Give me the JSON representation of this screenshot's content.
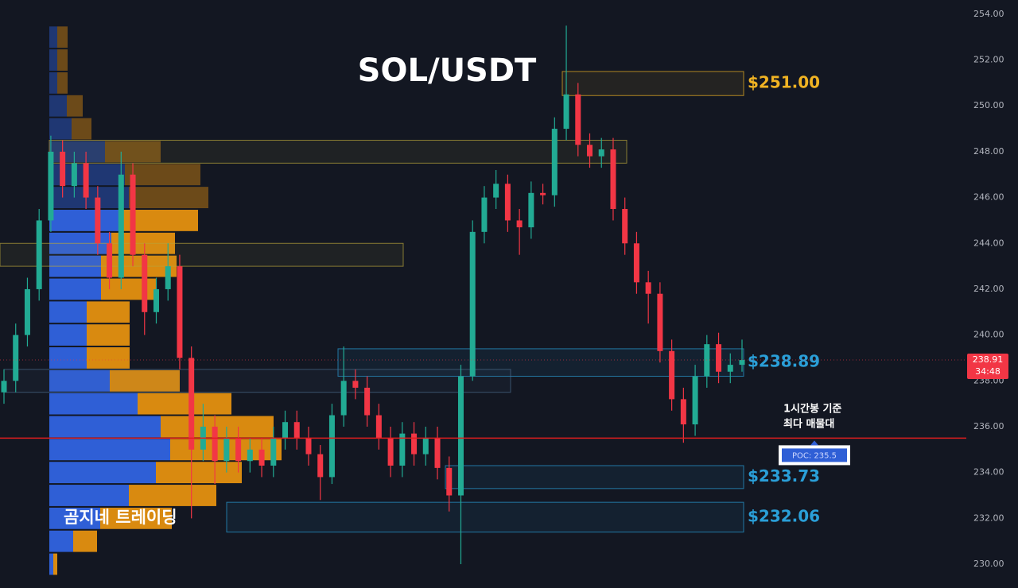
{
  "chart_data": {
    "type": "candlestick",
    "title": "SOL/USDT",
    "watermark": "곰지네 트레이딩",
    "annotation": [
      "1시간봉 기준",
      "최다 매물대"
    ],
    "ylim": [
      228.96,
      254.62
    ],
    "yticks": [
      {
        "value": 230,
        "label": "230.00"
      },
      {
        "value": 232,
        "label": "232.00"
      },
      {
        "value": 234,
        "label": "234.00"
      },
      {
        "value": 236,
        "label": "236.00"
      },
      {
        "value": 238,
        "label": "238.00"
      },
      {
        "value": 240,
        "label": "240.00"
      },
      {
        "value": 242,
        "label": "242.00"
      },
      {
        "value": 244,
        "label": "244.00"
      },
      {
        "value": 246,
        "label": "246.00"
      },
      {
        "value": 248,
        "label": "248.00"
      },
      {
        "value": 250,
        "label": "250.00"
      },
      {
        "value": 252,
        "label": "252.00"
      },
      {
        "value": 254,
        "label": "254.00"
      }
    ],
    "grid": false,
    "up_color": "#22ab94",
    "down_color": "#f23645",
    "open": [
      237.5,
      238,
      240,
      242,
      245,
      248,
      246.5,
      247.5,
      246,
      244,
      242.5,
      247,
      243.5,
      241,
      242,
      243,
      239,
      235,
      236,
      234.5,
      235.5,
      234.5,
      235,
      234.3,
      235.5,
      236.2,
      235.5,
      234.8,
      233.8,
      236.5,
      238,
      237.7,
      236.5,
      235.5,
      234.3,
      235.7,
      234.8,
      235.5,
      234.2,
      233,
      238.2,
      244.5,
      246,
      246.6,
      245,
      244.7,
      246.2,
      246.1,
      249,
      250.5,
      248.3,
      247.8,
      248.1,
      245.5,
      244,
      242.3,
      241.8,
      239.3,
      237.2,
      236.1,
      238.2,
      239.6,
      238.4,
      238.7
    ],
    "high": [
      238.5,
      240.5,
      242.5,
      245.5,
      248.7,
      248.5,
      248,
      248,
      246.5,
      244.5,
      248,
      247.5,
      244,
      242.5,
      244,
      243.5,
      239.5,
      237,
      236.5,
      236,
      236,
      235.5,
      235.5,
      236,
      236.7,
      236.7,
      236,
      235.2,
      237,
      239.5,
      238.5,
      238.2,
      237,
      236,
      236.2,
      236.2,
      236,
      236,
      234.7,
      238.7,
      245,
      246.5,
      247.2,
      247,
      245.5,
      246.7,
      246.6,
      249.5,
      253.5,
      251,
      248.8,
      248.6,
      248.6,
      246,
      244.5,
      242.8,
      242.3,
      239.8,
      237.7,
      238.7,
      240,
      240.1,
      239.2,
      239.8
    ],
    "low": [
      237,
      237.5,
      239.5,
      241.5,
      244.5,
      246,
      246,
      245.5,
      243.5,
      242,
      242,
      243,
      240,
      240.5,
      241.5,
      238.5,
      232,
      234.5,
      233.5,
      234,
      234,
      234,
      233.8,
      233.8,
      235,
      235,
      234.3,
      232.8,
      233.5,
      236,
      237.2,
      236,
      235,
      233.8,
      233.8,
      234.3,
      234.3,
      233.7,
      232.3,
      230,
      238,
      244,
      245.5,
      244.5,
      243.5,
      244.2,
      245.7,
      245.6,
      248.5,
      247.8,
      247.3,
      247.3,
      245,
      243.5,
      241.8,
      240.5,
      238.8,
      236.7,
      235.3,
      235.6,
      237.7,
      237.9,
      237.9,
      238.4
    ],
    "close": [
      238,
      240,
      242,
      245,
      248,
      246.5,
      247.5,
      246,
      244,
      242.5,
      247,
      243.5,
      241,
      242,
      243,
      239,
      235,
      236,
      234.5,
      235.5,
      234.5,
      235,
      234.3,
      235.5,
      236.2,
      235.5,
      234.8,
      233.8,
      236.5,
      238,
      237.7,
      236.5,
      235.5,
      234.3,
      235.7,
      234.8,
      235.5,
      234.2,
      233,
      238.2,
      244.5,
      246,
      246.6,
      245,
      244.7,
      246.2,
      246.1,
      249,
      250.5,
      248.3,
      247.8,
      248.1,
      245.5,
      244,
      242.3,
      241.8,
      239.3,
      237.2,
      236.1,
      238.2,
      239.6,
      238.4,
      238.7,
      238.91
    ],
    "volume_profile": {
      "bins": [
        229.5,
        230.5,
        231.5,
        232.5,
        233.5,
        234.5,
        235.5,
        236.5,
        237.5,
        238.5,
        239.5,
        240.5,
        241.5,
        242.5,
        243.5,
        244.5,
        245.5,
        246.5,
        247.5,
        248.5,
        249.5,
        250.5,
        251.5,
        252.5,
        253.5
      ],
      "buy": [
        5,
        30,
        64,
        100,
        134,
        152,
        140,
        111,
        76,
        47,
        47,
        47,
        65,
        65,
        78,
        92,
        100,
        95,
        70,
        28,
        22,
        10,
        10,
        10
      ],
      "sell": [
        5,
        30,
        90,
        110,
        108,
        140,
        142,
        118,
        88,
        54,
        54,
        54,
        70,
        95,
        80,
        95,
        100,
        95,
        70,
        25,
        20,
        13,
        13,
        13
      ],
      "buy_color": "#2f5fd6",
      "sell_color": "#d98a10"
    },
    "zones": [
      {
        "top": 251.5,
        "bottom": 250.45,
        "label": "$251.00",
        "color": "#f0b323"
      },
      {
        "top": 248.5,
        "bottom": 247.5,
        "color": "#b8a43a"
      },
      {
        "top": 244,
        "bottom": 243,
        "color": "#b8a43a"
      },
      {
        "top": 239.4,
        "bottom": 238.2,
        "label": "$238.89",
        "color": "#2a9fd8"
      },
      {
        "top": 238.5,
        "bottom": 237.5,
        "color": "#4a6a8a"
      },
      {
        "top": 234.3,
        "bottom": 233.3,
        "label": "$233.73",
        "color": "#2a9fd8"
      },
      {
        "top": 232.7,
        "bottom": 231.4,
        "label": "$232.06",
        "color": "#2a9fd8"
      }
    ],
    "poc": {
      "value": 235.5,
      "label": "POC: 235.5",
      "color": "#e01e1e"
    },
    "last_price": 238.91,
    "countdown": "34:48"
  }
}
